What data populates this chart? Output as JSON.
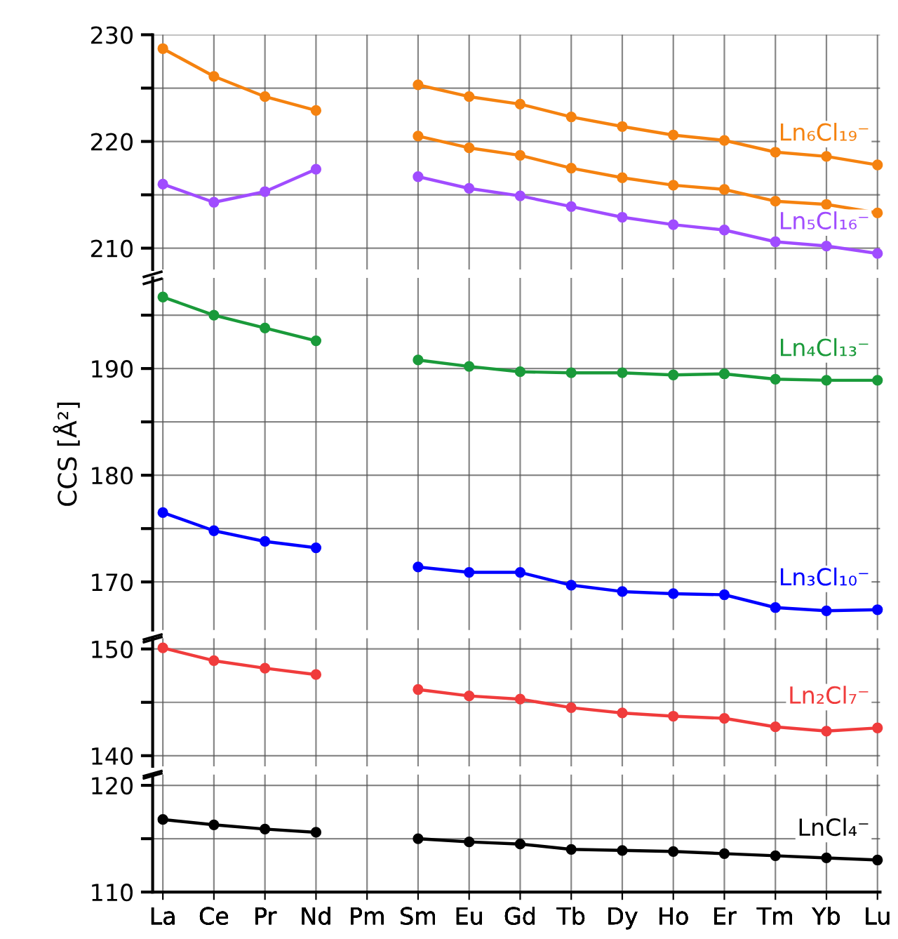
{
  "chart_data": [
    {
      "type": "line",
      "categories": [
        "La",
        "Ce",
        "Pr",
        "Nd",
        "Pm",
        "Sm",
        "Eu",
        "Gd",
        "Tb",
        "Dy",
        "Ho",
        "Er",
        "Tm",
        "Yb",
        "Lu"
      ],
      "ylim": [
        208,
        230
      ],
      "yticks": [
        {
          "value": 210,
          "label": "210"
        },
        {
          "value": 215,
          "label": null
        },
        {
          "value": 220,
          "label": "220"
        },
        {
          "value": 225,
          "label": null
        },
        {
          "value": 230,
          "label": "230"
        }
      ],
      "grid": true,
      "marker": "circle",
      "line_style": "solid",
      "tick_labels": "y",
      "series": [
        {
          "name": "Ln₆Cl₁₉⁻",
          "color": "#f5820f",
          "values": [
            228.7,
            226.1,
            224.2,
            222.9,
            null,
            225.3,
            224.2,
            223.5,
            222.3,
            221.4,
            220.6,
            220.1,
            219.0,
            218.6,
            217.8
          ]
        },
        {
          "color": "#f5820f",
          "values": [
            null,
            null,
            null,
            null,
            null,
            220.5,
            219.4,
            218.7,
            217.5,
            216.6,
            215.9,
            215.5,
            214.4,
            214.1,
            213.3
          ]
        },
        {
          "name": "Ln₅Cl₁₆⁻",
          "color": "#a04cff",
          "values": [
            216.0,
            214.3,
            215.3,
            217.4,
            null,
            216.7,
            215.6,
            214.9,
            213.9,
            212.9,
            212.2,
            211.7,
            210.6,
            210.2,
            209.5
          ]
        }
      ]
    },
    {
      "type": "line",
      "categories": [
        "La",
        "Ce",
        "Pr",
        "Nd",
        "Pm",
        "Sm",
        "Eu",
        "Gd",
        "Tb",
        "Dy",
        "Ho",
        "Er",
        "Tm",
        "Yb",
        "Lu"
      ],
      "ylabel": "CCS [Å²]",
      "ylim": [
        165.5,
        198.5
      ],
      "yticks": [
        {
          "value": 170,
          "label": "170"
        },
        {
          "value": 175,
          "label": null
        },
        {
          "value": 180,
          "label": "180"
        },
        {
          "value": 185,
          "label": null
        },
        {
          "value": 190,
          "label": "190"
        },
        {
          "value": 195,
          "label": null
        }
      ],
      "grid": true,
      "marker": "circle",
      "line_style": "solid",
      "tick_labels": "y",
      "series": [
        {
          "name": "Ln₄Cl₁₃⁻",
          "color": "#1a9a3a",
          "values": [
            196.7,
            195.0,
            193.8,
            192.6,
            null,
            190.8,
            190.2,
            189.7,
            189.6,
            189.6,
            189.4,
            189.5,
            189.0,
            188.9,
            188.9
          ]
        },
        {
          "name": "Ln₃Cl₁₀⁻",
          "color": "#0000ff",
          "values": [
            176.5,
            174.8,
            173.8,
            173.2,
            null,
            171.4,
            170.9,
            170.9,
            169.7,
            169.1,
            168.9,
            168.8,
            167.6,
            167.3,
            167.4
          ]
        }
      ]
    },
    {
      "type": "line",
      "categories": [
        "La",
        "Ce",
        "Pr",
        "Nd",
        "Pm",
        "Sm",
        "Eu",
        "Gd",
        "Tb",
        "Dy",
        "Ho",
        "Er",
        "Tm",
        "Yb",
        "Lu"
      ],
      "ylim": [
        139,
        151
      ],
      "yticks": [
        {
          "value": 140,
          "label": "140"
        },
        {
          "value": 145,
          "label": null
        },
        {
          "value": 150,
          "label": "150"
        }
      ],
      "grid": true,
      "marker": "circle",
      "line_style": "solid",
      "tick_labels": "y",
      "series": [
        {
          "name": "Ln₂Cl₇⁻",
          "color": "#f03c3c",
          "values": [
            150.1,
            148.9,
            148.2,
            147.6,
            null,
            146.2,
            145.6,
            145.3,
            144.5,
            144.0,
            143.7,
            143.5,
            142.7,
            142.3,
            142.6
          ]
        }
      ]
    },
    {
      "type": "line",
      "categories": [
        "La",
        "Ce",
        "Pr",
        "Nd",
        "Pm",
        "Sm",
        "Eu",
        "Gd",
        "Tb",
        "Dy",
        "Ho",
        "Er",
        "Tm",
        "Yb",
        "Lu"
      ],
      "ylim": [
        110,
        121
      ],
      "yticks": [
        {
          "value": 110,
          "label": "110"
        },
        {
          "value": 115,
          "label": null
        },
        {
          "value": 120,
          "label": "120"
        }
      ],
      "grid": true,
      "marker": "circle",
      "line_style": "solid",
      "series": [
        {
          "name": "LnCl₄⁻",
          "color": "#000000",
          "values": [
            116.8,
            116.3,
            115.9,
            115.6,
            null,
            115.0,
            114.7,
            114.5,
            114.0,
            113.9,
            113.8,
            113.6,
            113.4,
            113.2,
            113.0
          ]
        }
      ]
    }
  ]
}
